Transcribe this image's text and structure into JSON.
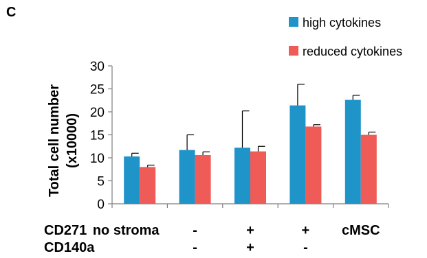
{
  "panel_label": "C",
  "colors": {
    "high": "#1f94c9",
    "reduced": "#ef5b57",
    "axis": "#7f7f7f",
    "error": "#000000"
  },
  "chart_data": {
    "type": "bar",
    "categories": [
      "no stroma",
      "-",
      "+",
      "+",
      "cMSC"
    ],
    "series": [
      {
        "name": "high cytokines",
        "values": [
          10.3,
          11.7,
          12.2,
          21.4,
          22.6
        ],
        "errors": [
          0.7,
          3.3,
          8.0,
          4.6,
          1.0
        ]
      },
      {
        "name": "reduced cytokines",
        "values": [
          8.0,
          10.6,
          11.4,
          16.8,
          15.0
        ],
        "errors": [
          0.4,
          0.7,
          1.1,
          0.4,
          0.6
        ]
      }
    ],
    "ylabel_line1": "Total cell number",
    "ylabel_line2": "(x10000)",
    "ylim": [
      0,
      30
    ],
    "yticks": [
      0,
      5,
      10,
      15,
      20,
      25,
      30
    ],
    "legend_position": "top-right",
    "row_labels": {
      "cd271": {
        "label": "CD271",
        "values": [
          "no stroma",
          "-",
          "+",
          "+",
          "cMSC"
        ]
      },
      "cd140a": {
        "label": "CD140a",
        "values": [
          "",
          "-",
          "+",
          "-",
          ""
        ]
      }
    }
  }
}
